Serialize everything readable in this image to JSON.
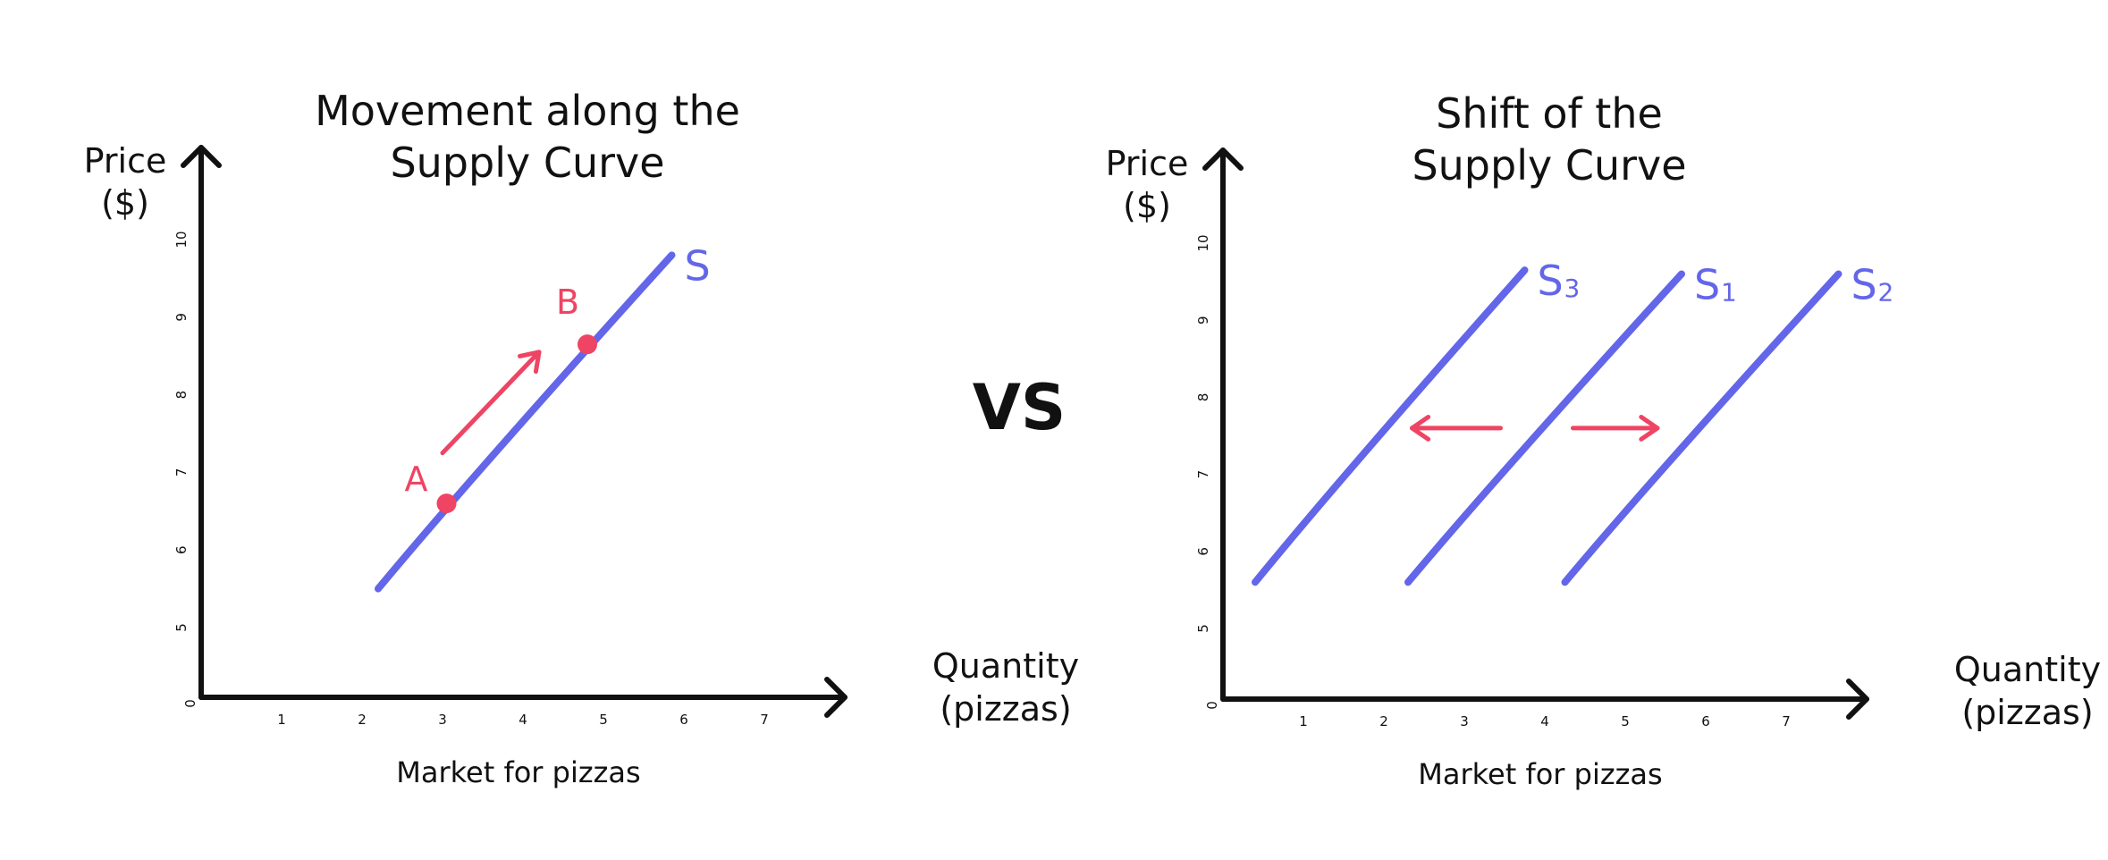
{
  "separator": "VS",
  "colors": {
    "axis": "#111111",
    "curve": "#6366e9",
    "accent": "#ef4463"
  },
  "chart_data": [
    {
      "type": "line",
      "title": [
        "Movement along the",
        "Supply Curve"
      ],
      "ylabel": [
        "Price",
        "($)"
      ],
      "xlabel": [
        "Quantity",
        "(pizzas)"
      ],
      "caption": "Market for pizzas",
      "xlim": [
        0,
        8
      ],
      "ylim": [
        4,
        11
      ],
      "x_ticks": [
        0,
        1,
        2,
        3,
        4,
        5,
        6,
        7
      ],
      "y_ticks": [
        5,
        6,
        7,
        8,
        9,
        10
      ],
      "origin_label": "0",
      "grid": false,
      "series": [
        {
          "name": "S",
          "sub": "",
          "x": [
            2.2,
            5.85
          ],
          "y": [
            5.5,
            9.8
          ]
        }
      ],
      "points": [
        {
          "name": "A",
          "x": 3.05,
          "y": 6.6
        },
        {
          "name": "B",
          "x": 4.8,
          "y": 8.65
        }
      ],
      "annotations": [
        {
          "type": "arrow",
          "direction": "up-right",
          "from": [
            3.0,
            7.25
          ],
          "to": [
            4.2,
            8.55
          ]
        }
      ]
    },
    {
      "type": "line",
      "title": [
        "Shift of the",
        "Supply Curve"
      ],
      "ylabel": [
        "Price",
        "($)"
      ],
      "xlabel": [
        "Quantity",
        "(pizzas)"
      ],
      "caption": "Market for pizzas",
      "xlim": [
        0,
        8
      ],
      "ylim": [
        4,
        11
      ],
      "x_ticks": [
        0,
        1,
        2,
        3,
        4,
        5,
        6,
        7
      ],
      "y_ticks": [
        5,
        6,
        7,
        8,
        9,
        10
      ],
      "origin_label": "0",
      "grid": false,
      "series": [
        {
          "name": "S",
          "sub": "3",
          "x": [
            0.4,
            3.75
          ],
          "y": [
            5.6,
            9.65
          ]
        },
        {
          "name": "S",
          "sub": "1",
          "x": [
            2.3,
            5.7
          ],
          "y": [
            5.6,
            9.6
          ]
        },
        {
          "name": "S",
          "sub": "2",
          "x": [
            4.25,
            7.65
          ],
          "y": [
            5.6,
            9.6
          ]
        }
      ],
      "points": [],
      "annotations": [
        {
          "type": "arrow",
          "direction": "left",
          "from": [
            3.45,
            7.6
          ],
          "to": [
            2.35,
            7.6
          ]
        },
        {
          "type": "arrow",
          "direction": "right",
          "from": [
            4.35,
            7.6
          ],
          "to": [
            5.4,
            7.6
          ]
        }
      ]
    }
  ]
}
